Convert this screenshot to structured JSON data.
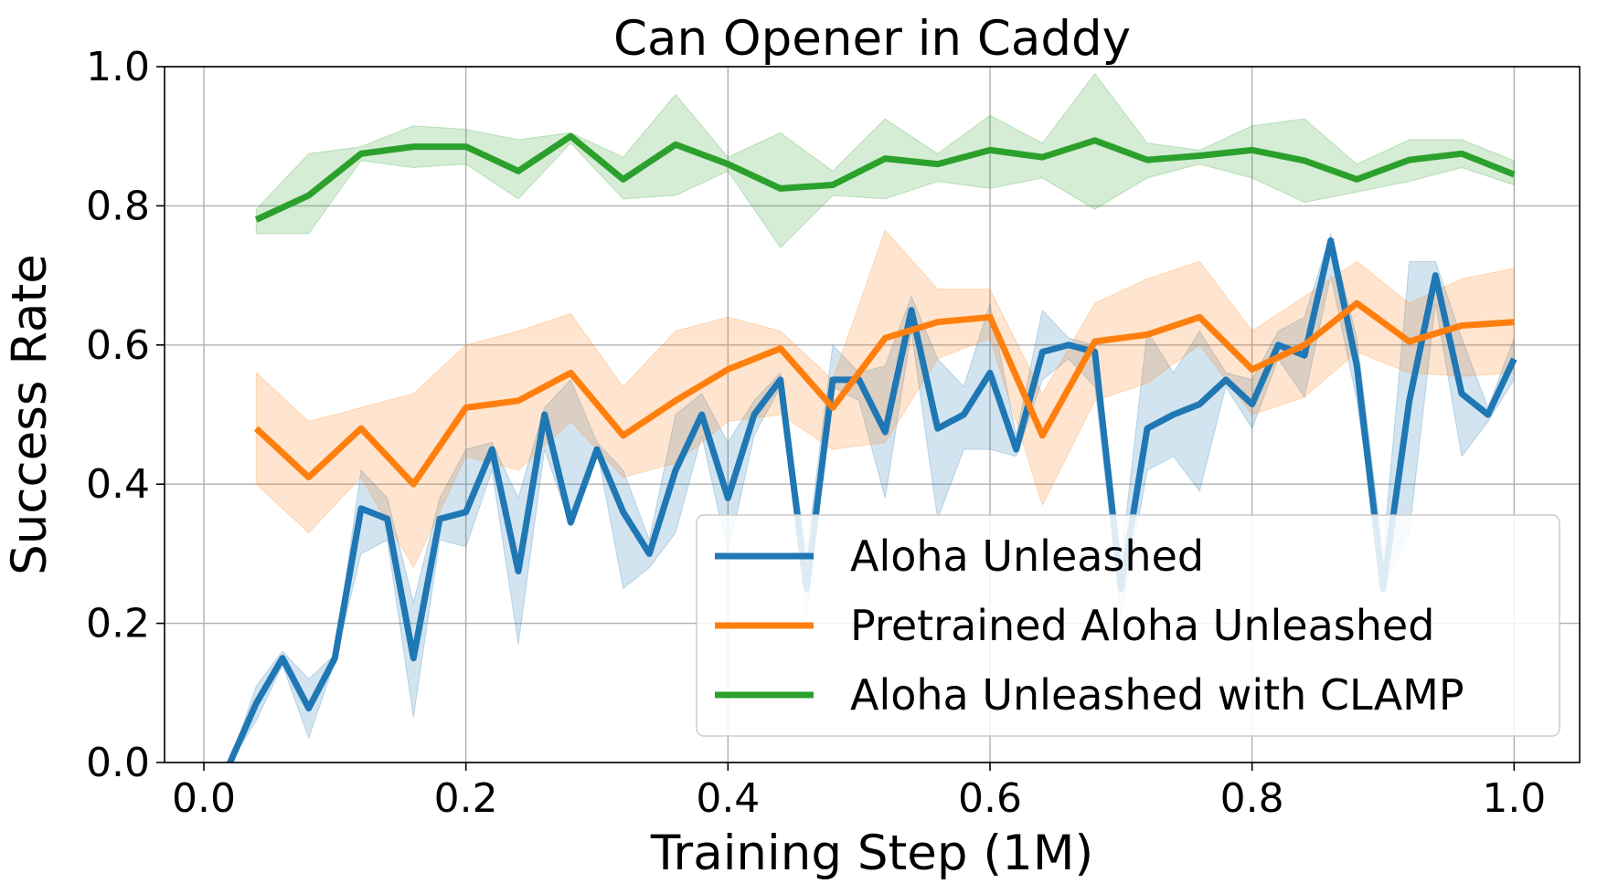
{
  "chart_data": {
    "type": "line",
    "title": "Can Opener in Caddy",
    "xlabel": "Training Step (1M)",
    "ylabel": "Success Rate",
    "xlim": [
      -0.03,
      1.05
    ],
    "ylim": [
      0.0,
      1.0
    ],
    "xticks": [
      0.0,
      0.2,
      0.4,
      0.6,
      0.8,
      1.0
    ],
    "yticks": [
      0.0,
      0.2,
      0.4,
      0.6,
      0.8,
      1.0
    ],
    "xtick_labels": [
      "0.0",
      "0.2",
      "0.4",
      "0.6",
      "0.8",
      "1.0"
    ],
    "ytick_labels": [
      "0.0",
      "0.2",
      "0.4",
      "0.6",
      "0.8",
      "1.0"
    ],
    "grid": true,
    "legend_position": "lower-right",
    "series": [
      {
        "name": "Aloha Unleashed",
        "color": "#1f77b4",
        "x": [
          0.0,
          0.02,
          0.04,
          0.06,
          0.08,
          0.1,
          0.12,
          0.14,
          0.16,
          0.18,
          0.2,
          0.22,
          0.24,
          0.26,
          0.28,
          0.3,
          0.32,
          0.34,
          0.36,
          0.38,
          0.4,
          0.42,
          0.44,
          0.46,
          0.48,
          0.5,
          0.52,
          0.54,
          0.56,
          0.58,
          0.6,
          0.62,
          0.64,
          0.66,
          0.68,
          0.7,
          0.72,
          0.74,
          0.76,
          0.78,
          0.8,
          0.82,
          0.84,
          0.86,
          0.88,
          0.9,
          0.92,
          0.94,
          0.96,
          0.98,
          1.0
        ],
        "y": [
          -0.05,
          0.0,
          0.085,
          0.15,
          0.078,
          0.15,
          0.365,
          0.35,
          0.15,
          0.35,
          0.36,
          0.45,
          0.275,
          0.5,
          0.345,
          0.45,
          0.36,
          0.3,
          0.42,
          0.5,
          0.38,
          0.5,
          0.55,
          0.25,
          0.55,
          0.55,
          0.475,
          0.65,
          0.48,
          0.5,
          0.56,
          0.45,
          0.59,
          0.6,
          0.59,
          0.25,
          0.48,
          0.5,
          0.515,
          0.55,
          0.515,
          0.6,
          0.585,
          0.75,
          0.57,
          0.25,
          0.52,
          0.7,
          0.53,
          0.5,
          0.58
        ],
        "lower": [
          -0.05,
          0.0,
          0.06,
          0.14,
          0.035,
          0.145,
          0.3,
          0.32,
          0.065,
          0.32,
          0.31,
          0.42,
          0.17,
          0.45,
          0.34,
          0.45,
          0.25,
          0.28,
          0.33,
          0.47,
          0.3,
          0.47,
          0.54,
          0.21,
          0.54,
          0.52,
          0.38,
          0.62,
          0.35,
          0.45,
          0.45,
          0.44,
          0.55,
          0.58,
          0.54,
          0.21,
          0.42,
          0.44,
          0.39,
          0.54,
          0.48,
          0.58,
          0.525,
          0.7,
          0.52,
          0.25,
          0.33,
          0.66,
          0.44,
          0.49,
          0.55
        ],
        "upper": [
          -0.05,
          0.0,
          0.11,
          0.16,
          0.12,
          0.155,
          0.42,
          0.38,
          0.23,
          0.38,
          0.45,
          0.46,
          0.38,
          0.51,
          0.55,
          0.46,
          0.42,
          0.32,
          0.5,
          0.53,
          0.46,
          0.52,
          0.56,
          0.3,
          0.6,
          0.56,
          0.57,
          0.67,
          0.58,
          0.54,
          0.66,
          0.47,
          0.65,
          0.61,
          0.6,
          0.29,
          0.62,
          0.56,
          0.62,
          0.56,
          0.55,
          0.62,
          0.64,
          0.76,
          0.61,
          0.3,
          0.72,
          0.72,
          0.61,
          0.51,
          0.61
        ]
      },
      {
        "name": "Pretrained Aloha Unleashed",
        "color": "#ff7f0e",
        "x": [
          0.04,
          0.08,
          0.12,
          0.16,
          0.2,
          0.24,
          0.28,
          0.32,
          0.36,
          0.4,
          0.44,
          0.48,
          0.52,
          0.56,
          0.6,
          0.64,
          0.68,
          0.72,
          0.76,
          0.8,
          0.84,
          0.88,
          0.92,
          0.96,
          1.0
        ],
        "y": [
          0.48,
          0.41,
          0.48,
          0.4,
          0.51,
          0.52,
          0.56,
          0.47,
          0.52,
          0.565,
          0.595,
          0.51,
          0.61,
          0.633,
          0.64,
          0.47,
          0.605,
          0.615,
          0.64,
          0.565,
          0.6,
          0.66,
          0.605,
          0.628,
          0.633
        ],
        "lower": [
          0.4,
          0.33,
          0.41,
          0.28,
          0.44,
          0.42,
          0.49,
          0.41,
          0.43,
          0.49,
          0.5,
          0.45,
          0.46,
          0.58,
          0.61,
          0.37,
          0.52,
          0.545,
          0.6,
          0.5,
          0.525,
          0.59,
          0.56,
          0.555,
          0.56
        ],
        "upper": [
          0.56,
          0.49,
          0.51,
          0.53,
          0.6,
          0.62,
          0.645,
          0.54,
          0.62,
          0.64,
          0.62,
          0.55,
          0.765,
          0.68,
          0.68,
          0.53,
          0.66,
          0.695,
          0.72,
          0.62,
          0.67,
          0.72,
          0.66,
          0.695,
          0.71
        ]
      },
      {
        "name": "Aloha Unleashed with CLAMP",
        "color": "#2ca02c",
        "x": [
          0.04,
          0.08,
          0.12,
          0.16,
          0.2,
          0.24,
          0.28,
          0.32,
          0.36,
          0.4,
          0.44,
          0.48,
          0.52,
          0.56,
          0.6,
          0.64,
          0.68,
          0.72,
          0.76,
          0.8,
          0.84,
          0.88,
          0.92,
          0.96,
          1.0
        ],
        "y": [
          0.78,
          0.815,
          0.875,
          0.885,
          0.885,
          0.85,
          0.9,
          0.838,
          0.888,
          0.86,
          0.825,
          0.83,
          0.868,
          0.86,
          0.88,
          0.87,
          0.894,
          0.866,
          0.872,
          0.88,
          0.865,
          0.838,
          0.866,
          0.875,
          0.845
        ],
        "lower": [
          0.76,
          0.76,
          0.865,
          0.855,
          0.86,
          0.81,
          0.89,
          0.81,
          0.815,
          0.85,
          0.74,
          0.815,
          0.81,
          0.835,
          0.825,
          0.84,
          0.795,
          0.84,
          0.86,
          0.84,
          0.805,
          0.82,
          0.835,
          0.855,
          0.83
        ],
        "upper": [
          0.795,
          0.875,
          0.885,
          0.915,
          0.91,
          0.895,
          0.905,
          0.87,
          0.96,
          0.87,
          0.905,
          0.85,
          0.925,
          0.875,
          0.93,
          0.89,
          0.99,
          0.89,
          0.88,
          0.915,
          0.925,
          0.86,
          0.895,
          0.895,
          0.865
        ]
      }
    ]
  }
}
